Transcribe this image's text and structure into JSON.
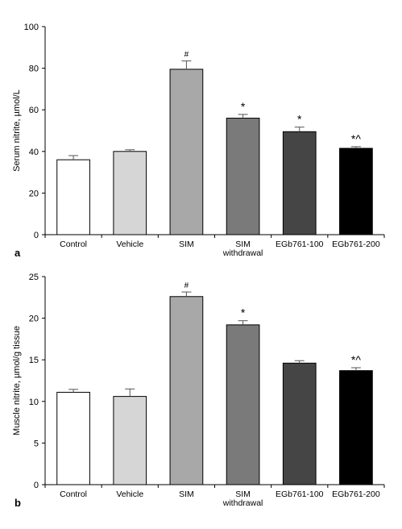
{
  "chart_data": [
    {
      "type": "bar",
      "panel_label": "a",
      "ylabel": "Serum nitrite, µmol/L",
      "ylim": [
        0,
        100
      ],
      "yticks": [
        0,
        20,
        40,
        60,
        80,
        100
      ],
      "categories": [
        {
          "lines": [
            "Control"
          ]
        },
        {
          "lines": [
            "Vehicle"
          ]
        },
        {
          "lines": [
            "SIM"
          ]
        },
        {
          "lines": [
            "SIM",
            "withdrawal"
          ]
        },
        {
          "lines": [
            "EGb761-100"
          ]
        },
        {
          "lines": [
            "EGb761-200"
          ]
        }
      ],
      "values": [
        36,
        40,
        79.5,
        56,
        49.5,
        41.5
      ],
      "errors": [
        2,
        0.8,
        4,
        1.8,
        2.2,
        0.8
      ],
      "colors": [
        "#ffffff",
        "#d6d6d6",
        "#a8a8a8",
        "#7a7a7a",
        "#454545",
        "#000000"
      ],
      "annotations": [
        "",
        "",
        "#",
        "*",
        "*",
        "*^"
      ]
    },
    {
      "type": "bar",
      "panel_label": "b",
      "ylabel": "Muscle nitrite, µmol/g tissue",
      "ylim": [
        0,
        25
      ],
      "yticks": [
        0,
        5,
        10,
        15,
        20,
        25
      ],
      "categories": [
        {
          "lines": [
            "Control"
          ]
        },
        {
          "lines": [
            "Vehicle"
          ]
        },
        {
          "lines": [
            "SIM"
          ]
        },
        {
          "lines": [
            "SIM",
            "withdrawal"
          ]
        },
        {
          "lines": [
            "EGb761-100"
          ]
        },
        {
          "lines": [
            "EGb761-200"
          ]
        }
      ],
      "values": [
        11.1,
        10.6,
        22.6,
        19.2,
        14.6,
        13.7
      ],
      "errors": [
        0.35,
        0.9,
        0.55,
        0.5,
        0.3,
        0.35
      ],
      "colors": [
        "#ffffff",
        "#d6d6d6",
        "#a8a8a8",
        "#7a7a7a",
        "#454545",
        "#000000"
      ],
      "annotations": [
        "",
        "",
        "#",
        "*",
        "",
        "*^"
      ]
    }
  ]
}
